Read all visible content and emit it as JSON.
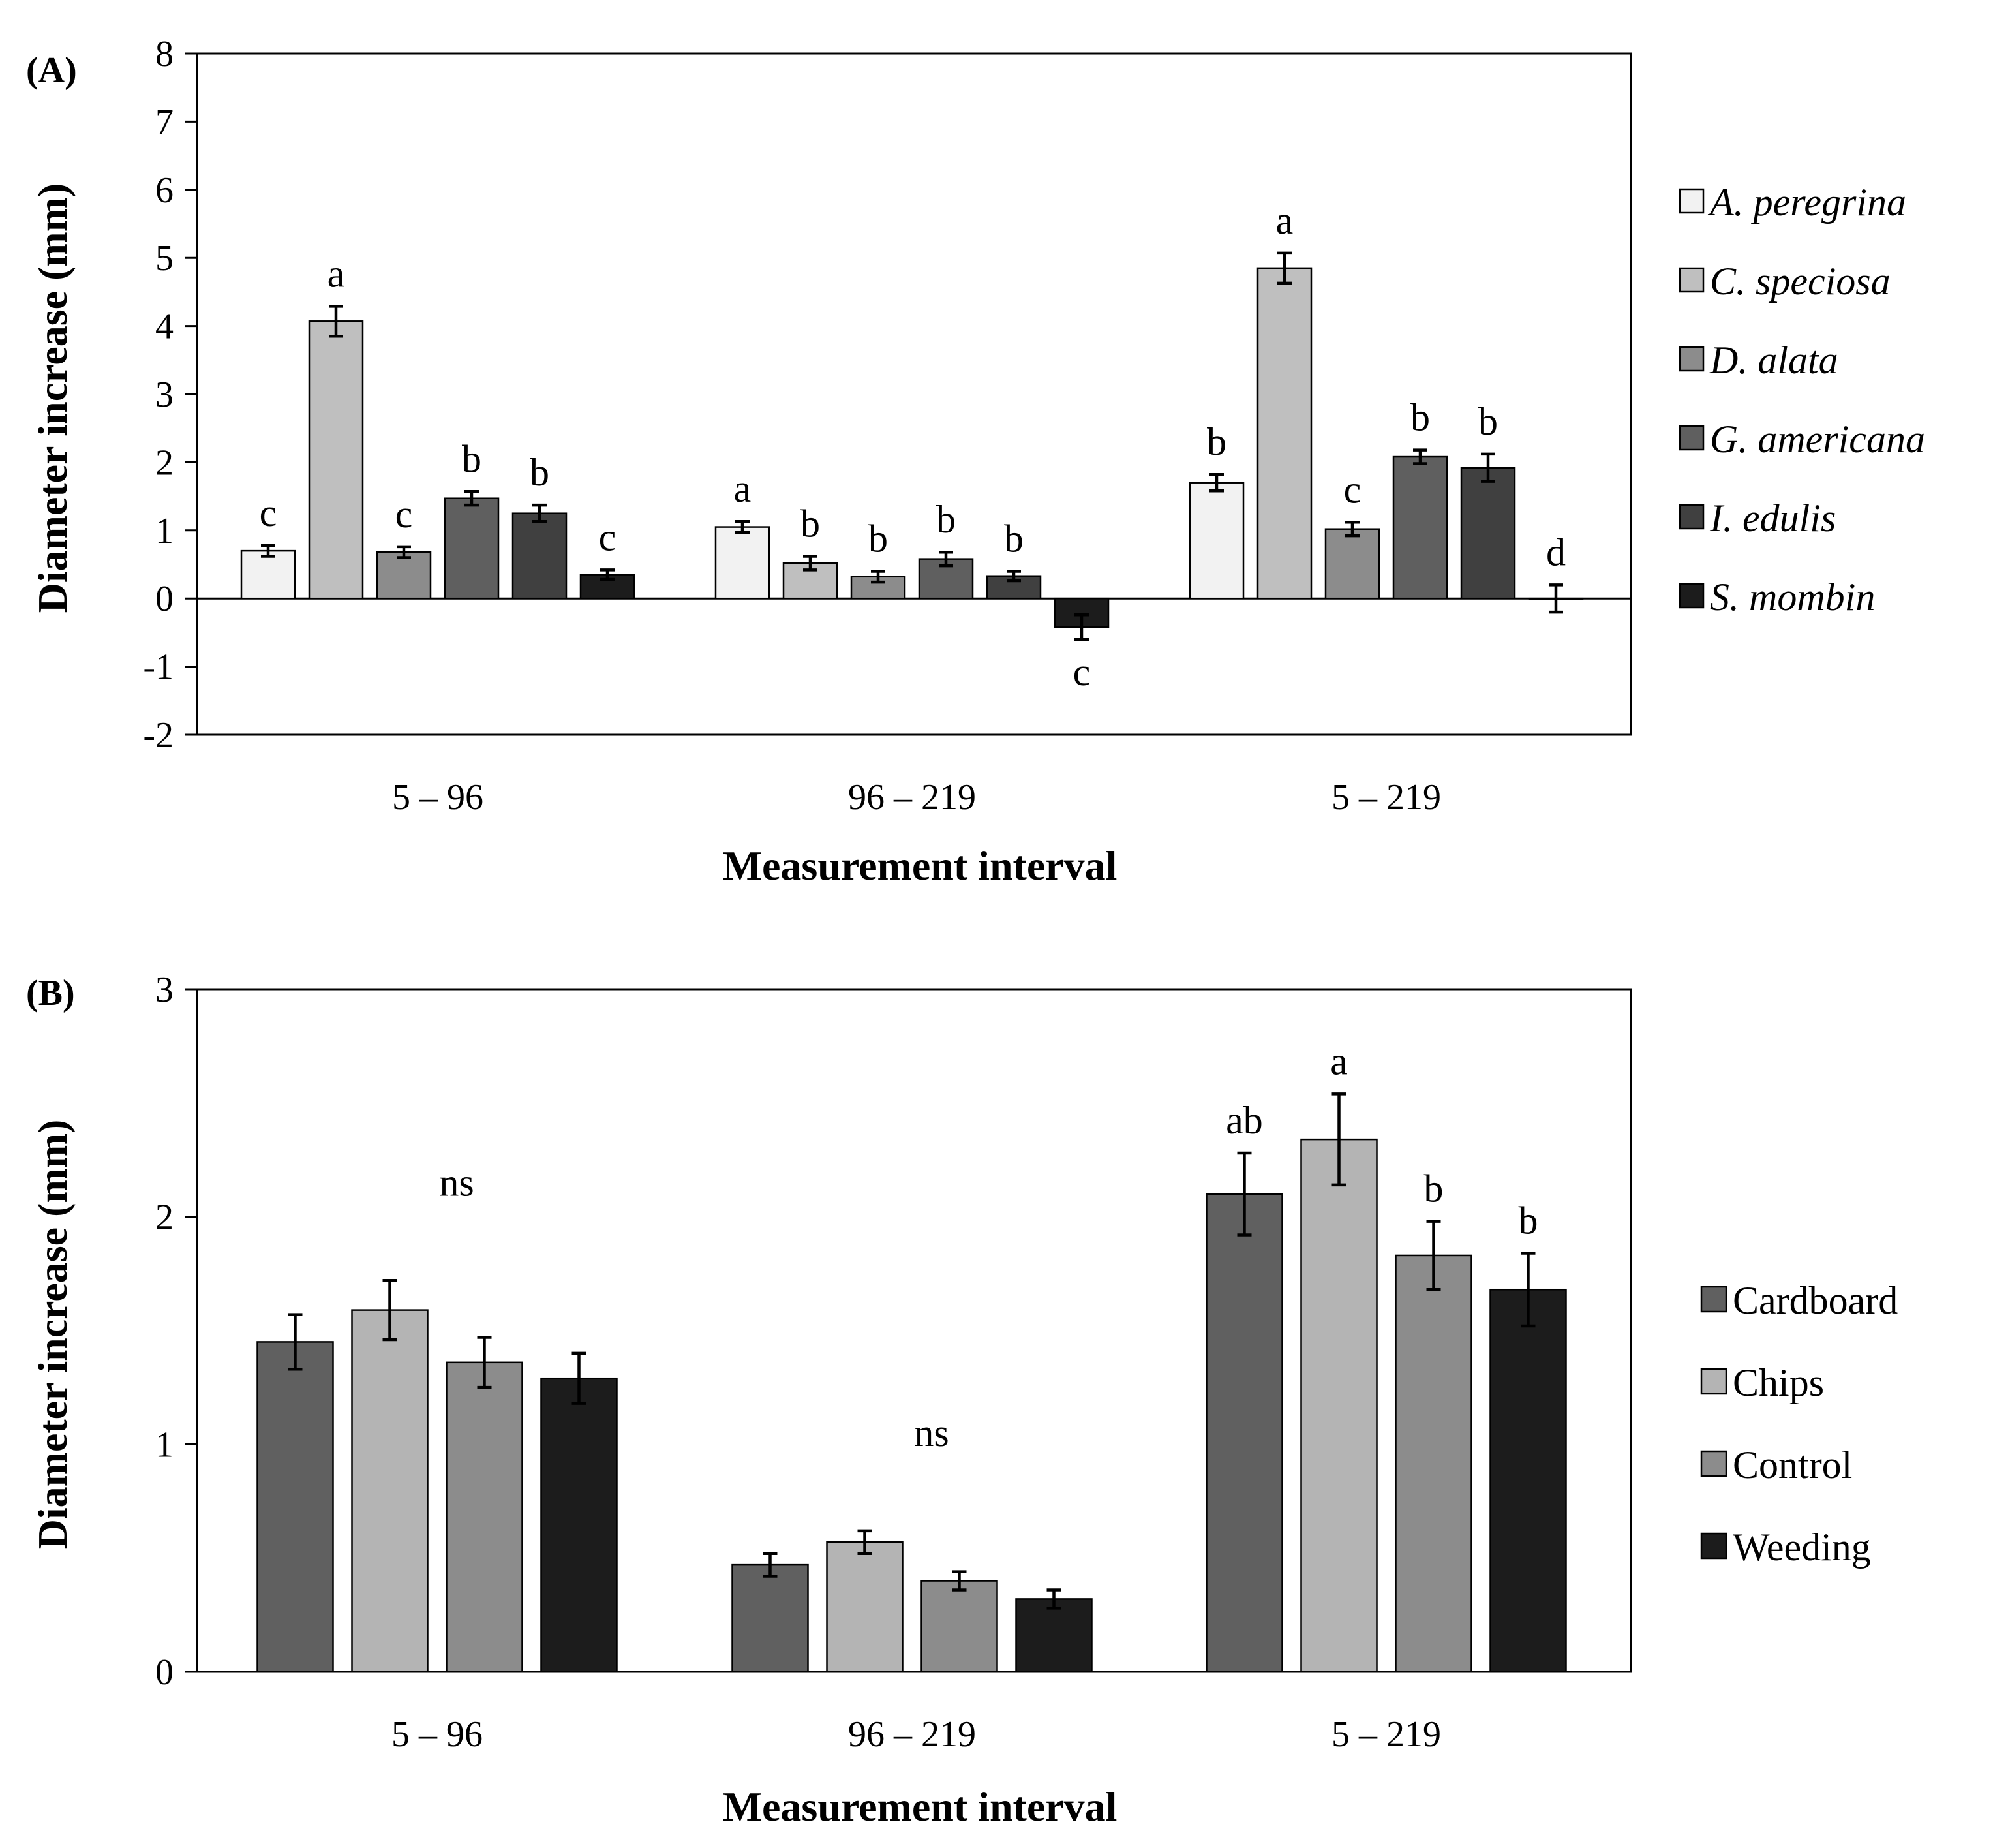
{
  "chart_data": [
    {
      "id": "A",
      "type": "bar",
      "panel_label": "(A)",
      "xlabel": "Measurement interval",
      "ylabel": "Diameter increase (mm)",
      "ylim": [
        -2,
        8
      ],
      "yticks": [
        -2,
        -1,
        0,
        1,
        2,
        3,
        4,
        5,
        6,
        7,
        8
      ],
      "categories": [
        "5 – 96",
        "96 – 219",
        "5 – 219"
      ],
      "legend_position": "right",
      "legend_italic": true,
      "series": [
        {
          "name": "A. peregrina",
          "color": "#f2f2f2",
          "values": [
            0.7,
            1.05,
            1.7
          ],
          "errors": [
            0.08,
            0.08,
            0.12
          ],
          "letters": [
            "c",
            "a",
            "b"
          ]
        },
        {
          "name": "C. speciosa",
          "color": "#bfbfbf",
          "values": [
            4.07,
            0.52,
            4.85
          ],
          "errors": [
            0.22,
            0.1,
            0.22
          ],
          "letters": [
            "a",
            "b",
            "a"
          ]
        },
        {
          "name": "D. alata",
          "color": "#8c8c8c",
          "values": [
            0.68,
            0.32,
            1.02
          ],
          "errors": [
            0.08,
            0.08,
            0.1
          ],
          "letters": [
            "c",
            "b",
            "c"
          ]
        },
        {
          "name": "G. americana",
          "color": "#5f5f5f",
          "values": [
            1.47,
            0.58,
            2.08
          ],
          "errors": [
            0.1,
            0.1,
            0.1
          ],
          "letters": [
            "b",
            "b",
            "b"
          ]
        },
        {
          "name": "I. edulis",
          "color": "#404040",
          "values": [
            1.25,
            0.33,
            1.92
          ],
          "errors": [
            0.12,
            0.07,
            0.2
          ],
          "letters": [
            "b",
            "b",
            "b"
          ]
        },
        {
          "name": "S. mombin",
          "color": "#1c1c1c",
          "values": [
            0.35,
            -0.42,
            0.0
          ],
          "errors": [
            0.07,
            0.18,
            0.2
          ],
          "letters": [
            "c",
            "c",
            "d"
          ]
        }
      ]
    },
    {
      "id": "B",
      "type": "bar",
      "panel_label": "(B)",
      "xlabel": "Measurement interval",
      "ylabel": "Diameter increase (mm)",
      "ylim": [
        0,
        3
      ],
      "yticks": [
        0,
        1,
        2,
        3
      ],
      "categories": [
        "5 – 96",
        "96 – 219",
        "5 – 219"
      ],
      "legend_position": "right",
      "legend_italic": false,
      "group_letters": [
        "ns",
        "ns",
        ""
      ],
      "series": [
        {
          "name": "Cardboard",
          "color": "#606060",
          "values": [
            1.45,
            0.47,
            2.1
          ],
          "errors": [
            0.12,
            0.05,
            0.18
          ],
          "letters": [
            "",
            "",
            "ab"
          ]
        },
        {
          "name": "Chips",
          "color": "#b4b4b4",
          "values": [
            1.59,
            0.57,
            2.34
          ],
          "errors": [
            0.13,
            0.05,
            0.2
          ],
          "letters": [
            "",
            "",
            "a"
          ]
        },
        {
          "name": "Control",
          "color": "#8c8c8c",
          "values": [
            1.36,
            0.4,
            1.83
          ],
          "errors": [
            0.11,
            0.04,
            0.15
          ],
          "letters": [
            "",
            "",
            "b"
          ]
        },
        {
          "name": "Weeding",
          "color": "#1c1c1c",
          "values": [
            1.29,
            0.32,
            1.68
          ],
          "errors": [
            0.11,
            0.04,
            0.16
          ],
          "letters": [
            "",
            "",
            "b"
          ]
        }
      ]
    }
  ]
}
